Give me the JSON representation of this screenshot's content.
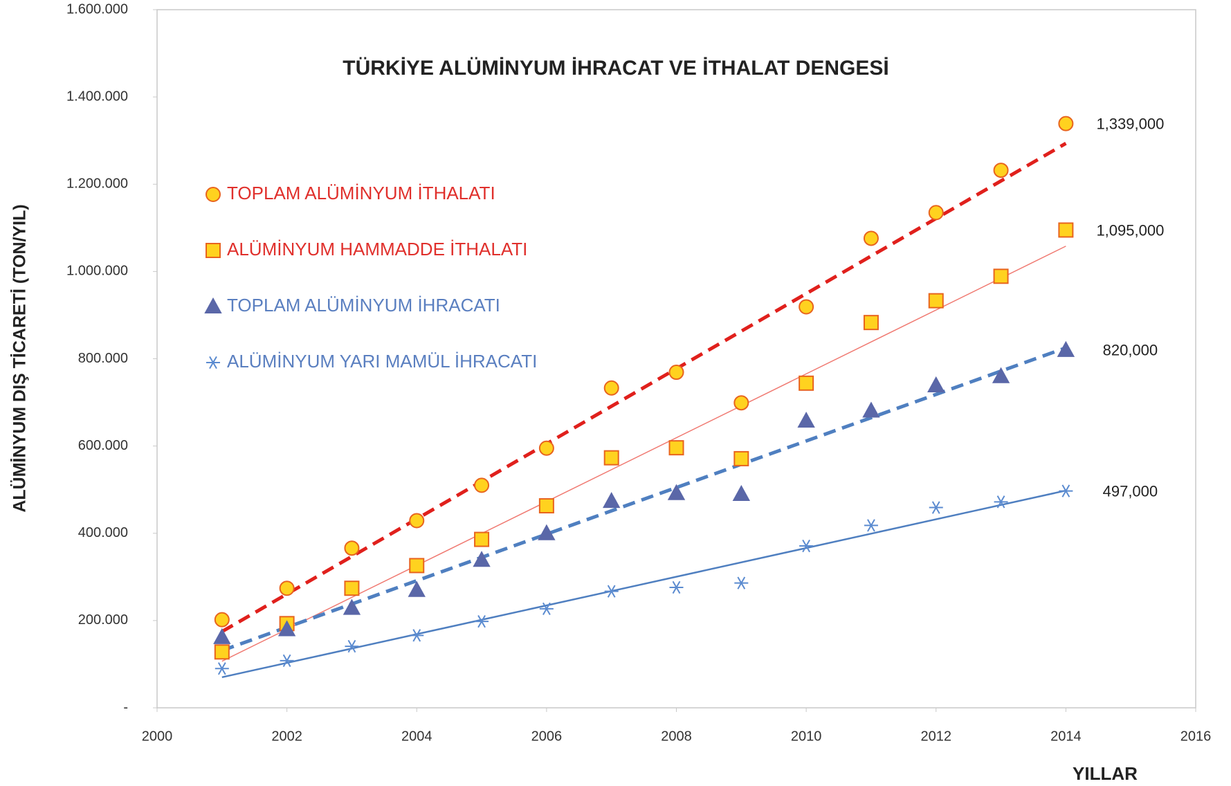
{
  "chart_data": {
    "type": "scatter",
    "title": "TÜRKİYE ALÜMİNYUM İHRACAT VE İTHALAT DENGESİ",
    "x_label": "YILLAR",
    "y_label": "ALÜMİNYUM DIŞ TİCARETİ (TON/YIL)",
    "x": [
      2001,
      2002,
      2003,
      2004,
      2005,
      2006,
      2007,
      2008,
      2009,
      2010,
      2011,
      2012,
      2013,
      2014
    ],
    "series": [
      {
        "name": "TOPLAM ALÜMİNYUM İTHALATI",
        "color": "#ffd21f",
        "stroke": "#e8641e",
        "marker": "circle",
        "trend_color": "#e0201c",
        "trend_style": "dashed",
        "values": [
          202000,
          274000,
          366000,
          429000,
          510000,
          595000,
          733000,
          769000,
          699000,
          919000,
          1076000,
          1135000,
          1232000,
          1339000
        ],
        "value_labels": [
          null,
          null,
          null,
          null,
          null,
          null,
          null,
          null,
          null,
          null,
          null,
          null,
          null,
          "1,339,000"
        ]
      },
      {
        "name": "ALÜMİNYUM HAMMADDE İTHALATI",
        "color": "#ffd21f",
        "stroke": "#e8641e",
        "marker": "square",
        "trend_color": "#f07a72",
        "trend_style": "solid",
        "values": [
          128000,
          193000,
          274000,
          326000,
          386000,
          463000,
          573000,
          596000,
          571000,
          744000,
          883000,
          933000,
          989000,
          1095000
        ],
        "value_labels": [
          null,
          null,
          null,
          null,
          null,
          null,
          null,
          null,
          null,
          null,
          null,
          null,
          null,
          "1,095,000"
        ]
      },
      {
        "name": "TOPLAM ALÜMİNYUM İHRACATI",
        "color": "#5a67a8",
        "stroke": "#5a67a8",
        "marker": "triangle",
        "trend_color": "#4f7fc0",
        "trend_style": "dashed",
        "values": [
          162000,
          180000,
          229000,
          270000,
          339000,
          400000,
          474000,
          492000,
          490000,
          658000,
          681000,
          739000,
          760000,
          820000
        ],
        "value_labels": [
          null,
          null,
          null,
          null,
          null,
          null,
          null,
          null,
          null,
          null,
          null,
          null,
          null,
          "820,000"
        ]
      },
      {
        "name": "ALÜMİNYUM YARI MAMÜL İHRACATI",
        "color": "#5b8bd0",
        "stroke": "#5b8bd0",
        "marker": "star",
        "trend_color": "#4f7fc0",
        "trend_style": "solid",
        "values": [
          90000,
          108000,
          141000,
          166000,
          198000,
          227000,
          267000,
          276000,
          286000,
          371000,
          418000,
          459000,
          472000,
          497000
        ],
        "value_labels": [
          null,
          null,
          null,
          null,
          null,
          null,
          null,
          null,
          null,
          null,
          null,
          null,
          null,
          "497,000"
        ]
      }
    ],
    "legend_colors": [
      "#e0302c",
      "#e0302c",
      "#5a7fc0",
      "#5a7fc0"
    ],
    "xlim": [
      2000,
      2016
    ],
    "xticks": [
      2000,
      2002,
      2004,
      2006,
      2008,
      2010,
      2012,
      2014,
      2016
    ],
    "ylim": [
      0,
      1600000
    ],
    "yticks": [
      {
        "value": 0,
        "label": "-"
      },
      {
        "value": 200000,
        "label": "200.000"
      },
      {
        "value": 400000,
        "label": "400.000"
      },
      {
        "value": 600000,
        "label": "600.000"
      },
      {
        "value": 800000,
        "label": "800.000"
      },
      {
        "value": 1000000,
        "label": "1.000.000"
      },
      {
        "value": 1200000,
        "label": "1.200.000"
      },
      {
        "value": 1400000,
        "label": "1.400.000"
      },
      {
        "value": 1600000,
        "label": "1.600.000"
      }
    ],
    "legend": "upper left",
    "grid": false
  }
}
